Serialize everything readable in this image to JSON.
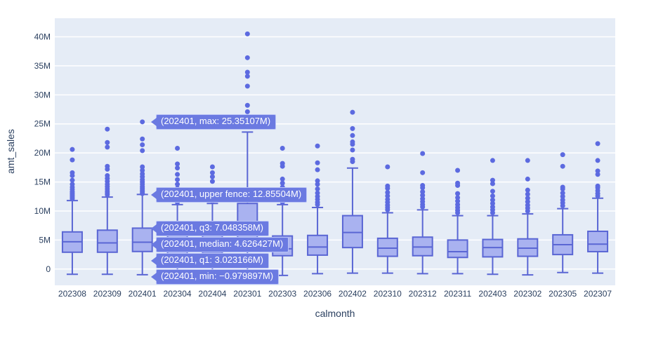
{
  "chart_data": {
    "type": "box",
    "title": "",
    "xlabel": "calmonth",
    "ylabel": "amt_sales",
    "unit": "M",
    "legend": "none",
    "grid": true,
    "plot_bg": "#e5ecf6",
    "grid_color": "#ffffff",
    "box_fill": "#a9b2f0",
    "box_stroke": "#5a66d4",
    "marker_color": "#5c6ae0",
    "axis_text_color": "#2a3f5f",
    "ylim": [
      -2.8,
      43.2
    ],
    "ytick_values": [
      0,
      5,
      10,
      15,
      20,
      25,
      30,
      35,
      40
    ],
    "ytick_labels": [
      "0",
      "5M",
      "10M",
      "15M",
      "20M",
      "25M",
      "30M",
      "35M",
      "40M"
    ],
    "categories": [
      "202308",
      "202309",
      "202401",
      "202304",
      "202404",
      "202301",
      "202303",
      "202306",
      "202402",
      "202310",
      "202312",
      "202311",
      "202403",
      "202302",
      "202305",
      "202307"
    ],
    "series": [
      {
        "name": "202308",
        "min": -0.9,
        "q1": 2.9,
        "median": 4.7,
        "q3": 6.4,
        "upper_fence": 11.8,
        "outliers": [
          12.1,
          12.4,
          12.7,
          13.0,
          13.3,
          13.7,
          14.1,
          14.6,
          15.3,
          16.1,
          16.6,
          18.8,
          20.6
        ]
      },
      {
        "name": "202309",
        "min": -0.9,
        "q1": 2.9,
        "median": 4.5,
        "q3": 6.7,
        "upper_fence": 12.4,
        "outliers": [
          12.8,
          13.1,
          13.4,
          13.8,
          14.2,
          14.6,
          15.1,
          15.6,
          16.1,
          17.2,
          17.7,
          21.0,
          21.8,
          24.1
        ]
      },
      {
        "name": "202401",
        "min": -0.979897,
        "q1": 3.023166,
        "median": 4.626427,
        "q3": 7.048358,
        "upper_fence": 12.85504,
        "outliers": [
          13.0,
          13.3,
          13.6,
          13.9,
          14.2,
          14.6,
          15.0,
          15.4,
          15.9,
          16.4,
          17.0,
          17.6,
          20.4,
          21.4,
          22.4,
          25.35107
        ]
      },
      {
        "name": "202304",
        "min": -1.0,
        "q1": 2.6,
        "median": 3.9,
        "q3": 5.9,
        "upper_fence": 11.1,
        "outliers": [
          11.5,
          11.9,
          12.3,
          12.8,
          13.3,
          13.9,
          14.6,
          15.4,
          16.3,
          17.4,
          18.1,
          20.8
        ]
      },
      {
        "name": "202404",
        "min": -0.9,
        "q1": 2.7,
        "median": 4.0,
        "q3": 5.8,
        "upper_fence": 11.3,
        "outliers": [
          11.7,
          12.1,
          12.6,
          13.1,
          13.7,
          15.1,
          15.9,
          16.6,
          17.6
        ]
      },
      {
        "name": "202301",
        "min": -1.0,
        "q1": 3.8,
        "median": 6.8,
        "q3": 11.3,
        "upper_fence": 23.6,
        "outliers": [
          27.1,
          28.2,
          31.5,
          33.2,
          33.9,
          36.4,
          40.5
        ]
      },
      {
        "name": "202303",
        "min": -1.1,
        "q1": 2.3,
        "median": 3.5,
        "q3": 5.7,
        "upper_fence": 11.1,
        "outliers": [
          11.5,
          11.9,
          12.4,
          12.9,
          13.5,
          14.1,
          14.8,
          15.5,
          17.7,
          18.2,
          20.8
        ]
      },
      {
        "name": "202306",
        "min": -0.8,
        "q1": 2.4,
        "median": 3.8,
        "q3": 5.8,
        "upper_fence": 10.6,
        "outliers": [
          11.1,
          11.5,
          12.0,
          12.5,
          13.1,
          13.8,
          14.6,
          15.2,
          17.1,
          18.3,
          21.2
        ]
      },
      {
        "name": "202402",
        "min": -0.7,
        "q1": 3.7,
        "median": 6.3,
        "q3": 9.2,
        "upper_fence": 17.4,
        "outliers": [
          18.5,
          18.9,
          20.5,
          21.5,
          21.9,
          23.0,
          24.2,
          27.0
        ]
      },
      {
        "name": "202310",
        "min": -0.7,
        "q1": 2.2,
        "median": 3.6,
        "q3": 5.3,
        "upper_fence": 9.7,
        "outliers": [
          10.2,
          10.6,
          11.0,
          11.5,
          12.0,
          12.6,
          13.2,
          13.9,
          14.3,
          17.6
        ]
      },
      {
        "name": "202312",
        "min": -0.8,
        "q1": 2.3,
        "median": 3.8,
        "q3": 5.5,
        "upper_fence": 10.2,
        "outliers": [
          10.7,
          11.1,
          11.6,
          12.1,
          12.7,
          13.3,
          14.0,
          14.4,
          16.6,
          19.9
        ]
      },
      {
        "name": "202311",
        "min": -0.8,
        "q1": 2.0,
        "median": 3.0,
        "q3": 5.0,
        "upper_fence": 9.2,
        "outliers": [
          9.7,
          10.1,
          10.6,
          11.1,
          11.7,
          12.3,
          13.0,
          14.4,
          14.8,
          17.0
        ]
      },
      {
        "name": "202403",
        "min": -0.9,
        "q1": 2.1,
        "median": 3.7,
        "q3": 5.1,
        "upper_fence": 9.2,
        "outliers": [
          9.7,
          10.2,
          10.7,
          11.3,
          11.9,
          12.6,
          13.4,
          14.7,
          15.3,
          18.7
        ]
      },
      {
        "name": "202302",
        "min": -1.0,
        "q1": 2.2,
        "median": 3.6,
        "q3": 5.2,
        "upper_fence": 9.5,
        "outliers": [
          10.0,
          10.5,
          11.0,
          11.6,
          12.2,
          12.9,
          13.6,
          15.5,
          18.7
        ]
      },
      {
        "name": "202305",
        "min": -0.6,
        "q1": 2.5,
        "median": 4.2,
        "q3": 5.9,
        "upper_fence": 10.4,
        "outliers": [
          10.9,
          11.4,
          11.9,
          12.5,
          13.1,
          13.8,
          14.1,
          17.7,
          19.7
        ]
      },
      {
        "name": "202307",
        "min": -0.7,
        "q1": 3.0,
        "median": 4.3,
        "q3": 6.5,
        "upper_fence": 12.2,
        "outliers": [
          12.6,
          13.0,
          13.5,
          14.0,
          14.3,
          16.3,
          16.9,
          18.7,
          21.6
        ]
      }
    ]
  },
  "tooltips": [
    {
      "stat": "max",
      "text": "(202401, max: 25.35107M)",
      "value": 25.35107
    },
    {
      "stat": "upper_fence",
      "text": "(202401, upper fence: 12.85504M)",
      "value": 12.85504
    },
    {
      "stat": "q3",
      "text": "(202401, q3: 7.048358M)",
      "value": 7.048358
    },
    {
      "stat": "median",
      "text": "(202401, median: 4.626427M)",
      "value": 4.626427
    },
    {
      "stat": "q1",
      "text": "(202401, q1: 3.023166M)",
      "value": 3.023166
    },
    {
      "stat": "min",
      "text": "(202401, min: −0.979897M)",
      "value": -0.979897
    }
  ]
}
